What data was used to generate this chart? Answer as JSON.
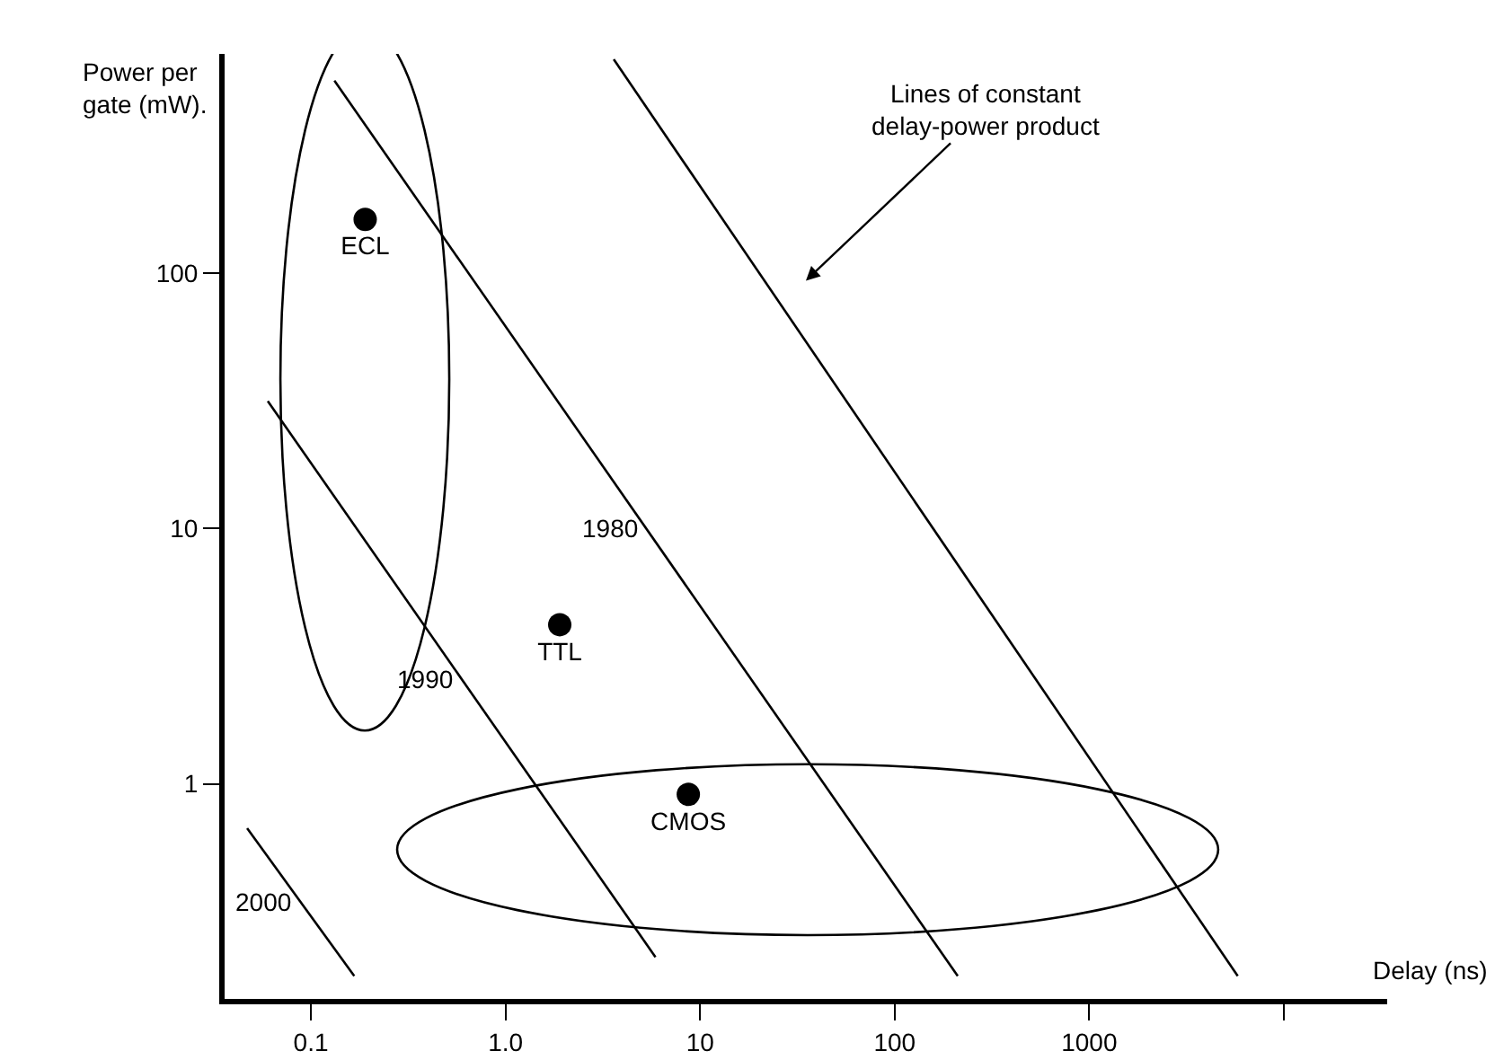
{
  "chart_data": {
    "type": "scatter",
    "xlabel": "Delay (ns)",
    "ylabel": "Power per gate (mW).",
    "log": "xy",
    "grid": false,
    "legend": false,
    "marker": "circle",
    "xlim": [
      0.036,
      34000
    ],
    "ylim": [
      0.144,
      720
    ],
    "xticks": [
      0.1,
      {
        "value": 1,
        "label": "1.0"
      },
      10,
      100,
      1000,
      {
        "value": 10000,
        "label": null
      }
    ],
    "yticks": [
      1,
      10,
      100
    ],
    "series": [
      {
        "name": "ECL",
        "color": "#000000",
        "x": [
          0.19
        ],
        "values": [
          162
        ]
      },
      {
        "name": "TTL",
        "color": "#000000",
        "x": [
          1.9
        ],
        "values": [
          4.2
        ]
      },
      {
        "name": "CMOS",
        "color": "#000000",
        "x": [
          8.7
        ],
        "values": [
          0.91
        ]
      },
      {
        "name": "2000",
        "type": "line",
        "color": "#000000",
        "marker": "none",
        "line_style": "solid",
        "x": [
          0.047,
          0.167
        ],
        "values": [
          0.67,
          0.177
        ]
      },
      {
        "name": "1990",
        "type": "line",
        "color": "#000000",
        "marker": "none",
        "line_style": "solid",
        "x": [
          0.06,
          5.9
        ],
        "values": [
          31.5,
          0.21
        ]
      },
      {
        "name": "1980",
        "type": "line",
        "color": "#000000",
        "marker": "none",
        "line_style": "solid",
        "x": [
          0.132,
          211
        ],
        "values": [
          566,
          0.177
        ]
      },
      {
        "type": "line",
        "color": "#000000",
        "marker": "none",
        "line_style": "solid",
        "x": [
          3.6,
          5800
        ],
        "values": [
          686,
          0.177
        ]
      }
    ],
    "annotations": [
      "Lines of constant delay-power product"
    ]
  }
}
